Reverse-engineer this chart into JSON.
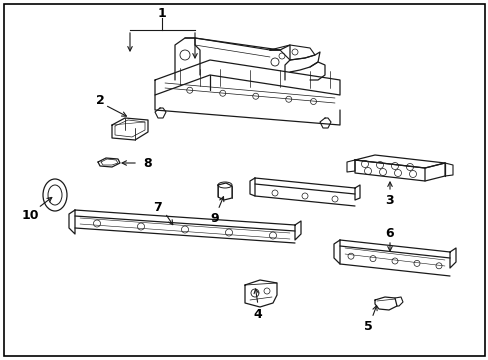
{
  "background_color": "#ffffff",
  "border_color": "#000000",
  "fig_width": 4.89,
  "fig_height": 3.6,
  "dpi": 100,
  "line_color": "#1a1a1a",
  "label_color": "#000000",
  "label_fontsize": 8.5
}
